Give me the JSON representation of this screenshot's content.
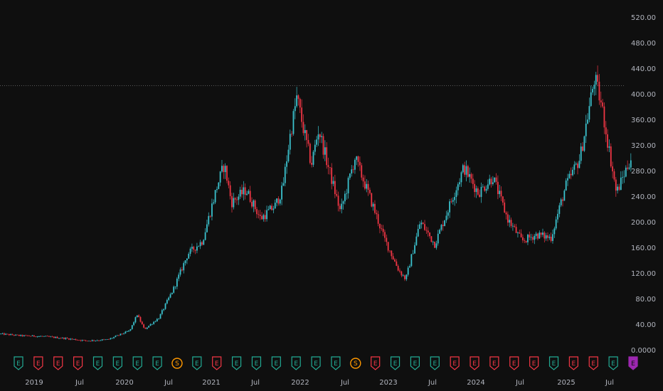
{
  "chart_data": {
    "type": "candlestick",
    "theme": {
      "background": "#0f0f0f",
      "up_color": "#22ab94",
      "up_wick_color": "#3bc3cf",
      "down_color": "#f23645",
      "grid": false,
      "price_line_color": "#888888"
    },
    "x_axis_ticks": [
      "2019",
      "Jul",
      "2020",
      "Jul",
      "2021",
      "Jul",
      "2022",
      "Jul",
      "2023",
      "Jul",
      "2024",
      "Jul",
      "2025",
      "Jul"
    ],
    "y_axis_ticks": [
      "520.00",
      "480.00",
      "440.00",
      "400.00",
      "360.00",
      "320.00",
      "280.00",
      "240.00",
      "200.00",
      "160.00",
      "120.00",
      "80.00",
      "40.00",
      "0.0000"
    ],
    "y_range": [
      0,
      520
    ],
    "current_price_line": 413,
    "x_range": [
      "2018-07",
      "2025-10"
    ],
    "close_path": [
      [
        "2018-07",
        25
      ],
      [
        "2018-10",
        22
      ],
      [
        "2019-01",
        21
      ],
      [
        "2019-04",
        18
      ],
      [
        "2019-07",
        14
      ],
      [
        "2019-10",
        16
      ],
      [
        "2020-01",
        30
      ],
      [
        "2020-02",
        55
      ],
      [
        "2020-03",
        32
      ],
      [
        "2020-05",
        50
      ],
      [
        "2020-07",
        95
      ],
      [
        "2020-09",
        150
      ],
      [
        "2020-11",
        170
      ],
      [
        "2021-01",
        255
      ],
      [
        "2021-02",
        290
      ],
      [
        "2021-03",
        230
      ],
      [
        "2021-05",
        250
      ],
      [
        "2021-07",
        205
      ],
      [
        "2021-09",
        225
      ],
      [
        "2021-10",
        250
      ],
      [
        "2021-11",
        330
      ],
      [
        "2021-12",
        395
      ],
      [
        "2022-01",
        340
      ],
      [
        "2022-02",
        290
      ],
      [
        "2022-03",
        345
      ],
      [
        "2022-04",
        300
      ],
      [
        "2022-06",
        215
      ],
      [
        "2022-08",
        300
      ],
      [
        "2022-10",
        240
      ],
      [
        "2022-12",
        175
      ],
      [
        "2023-02",
        125
      ],
      [
        "2023-03",
        110
      ],
      [
        "2023-05",
        200
      ],
      [
        "2023-07",
        165
      ],
      [
        "2023-09",
        225
      ],
      [
        "2023-11",
        285
      ],
      [
        "2024-01",
        245
      ],
      [
        "2024-03",
        270
      ],
      [
        "2024-05",
        205
      ],
      [
        "2024-07",
        170
      ],
      [
        "2024-09",
        180
      ],
      [
        "2024-11",
        175
      ],
      [
        "2025-01",
        255
      ],
      [
        "2025-03",
        300
      ],
      [
        "2025-05",
        425
      ],
      [
        "2025-06",
        380
      ],
      [
        "2025-08",
        245
      ],
      [
        "2025-10",
        300
      ]
    ],
    "event_markers": [
      {
        "label": "E",
        "kind": "earnings-beat"
      },
      {
        "label": "E",
        "kind": "earnings-miss"
      },
      {
        "label": "E",
        "kind": "earnings-miss"
      },
      {
        "label": "E",
        "kind": "earnings-miss"
      },
      {
        "label": "E",
        "kind": "earnings-beat"
      },
      {
        "label": "E",
        "kind": "earnings-beat"
      },
      {
        "label": "E",
        "kind": "earnings-beat"
      },
      {
        "label": "E",
        "kind": "earnings-beat"
      },
      {
        "label": "S",
        "kind": "split"
      },
      {
        "label": "E",
        "kind": "earnings-beat"
      },
      {
        "label": "E",
        "kind": "earnings-miss"
      },
      {
        "label": "E",
        "kind": "earnings-beat"
      },
      {
        "label": "E",
        "kind": "earnings-beat"
      },
      {
        "label": "E",
        "kind": "earnings-beat"
      },
      {
        "label": "E",
        "kind": "earnings-beat"
      },
      {
        "label": "E",
        "kind": "earnings-beat"
      },
      {
        "label": "E",
        "kind": "earnings-beat"
      },
      {
        "label": "S",
        "kind": "split"
      },
      {
        "label": "E",
        "kind": "earnings-miss"
      },
      {
        "label": "E",
        "kind": "earnings-beat"
      },
      {
        "label": "E",
        "kind": "earnings-beat"
      },
      {
        "label": "E",
        "kind": "earnings-beat"
      },
      {
        "label": "E",
        "kind": "earnings-miss"
      },
      {
        "label": "E",
        "kind": "earnings-miss"
      },
      {
        "label": "E",
        "kind": "earnings-miss"
      },
      {
        "label": "E",
        "kind": "earnings-miss"
      },
      {
        "label": "E",
        "kind": "earnings-miss"
      },
      {
        "label": "E",
        "kind": "earnings-beat"
      },
      {
        "label": "E",
        "kind": "earnings-miss"
      },
      {
        "label": "E",
        "kind": "earnings-miss"
      },
      {
        "label": "E",
        "kind": "earnings-beat"
      },
      {
        "label": "E",
        "kind": "earnings-upcoming"
      }
    ],
    "marker_colors": {
      "earnings-beat": "#22ab94",
      "earnings-miss": "#f23645",
      "split": "#ff9800",
      "earnings-upcoming": "#9c27b0"
    }
  }
}
